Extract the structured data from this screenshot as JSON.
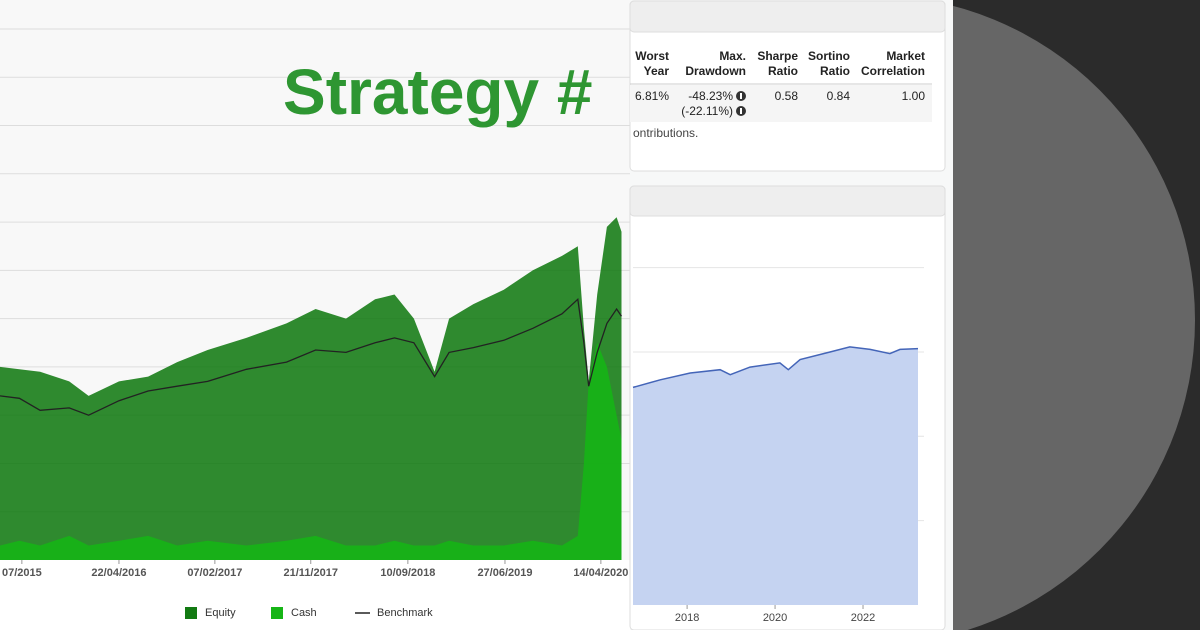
{
  "header": {
    "title": "Strategy #"
  },
  "chart_data": [
    {
      "type": "area",
      "x": [
        2015.33,
        2015.49,
        2015.66,
        2015.9,
        2016.06,
        2016.31,
        2016.55,
        2016.79,
        2017.04,
        2017.36,
        2017.69,
        2017.93,
        2018.18,
        2018.42,
        2018.58,
        2018.74,
        2018.91,
        2019.03,
        2019.23,
        2019.48,
        2019.72,
        2019.96,
        2020.09,
        2020.14,
        2020.18,
        2020.25,
        2020.33,
        2020.41,
        2020.45
      ],
      "series": [
        {
          "name": "Equity",
          "color": "#127a12",
          "values": [
            4.0,
            3.95,
            3.9,
            3.7,
            3.4,
            3.7,
            3.8,
            4.1,
            4.35,
            4.6,
            4.9,
            5.2,
            5.0,
            5.4,
            5.5,
            5.0,
            3.9,
            5.0,
            5.3,
            5.6,
            6.0,
            6.3,
            6.5,
            4.8,
            3.7,
            5.5,
            6.9,
            7.1,
            6.8
          ]
        },
        {
          "name": "Cash",
          "color": "#16b516",
          "values": [
            0.3,
            0.4,
            0.3,
            0.5,
            0.3,
            0.4,
            0.5,
            0.3,
            0.4,
            0.3,
            0.4,
            0.5,
            0.3,
            0.3,
            0.4,
            0.3,
            0.3,
            0.4,
            0.3,
            0.3,
            0.4,
            0.3,
            0.5,
            2.0,
            3.7,
            4.5,
            4.0,
            3.0,
            2.5
          ]
        },
        {
          "name": "Benchmark",
          "color": "#222222",
          "type": "line",
          "values": [
            3.4,
            3.35,
            3.1,
            3.15,
            3.0,
            3.3,
            3.5,
            3.6,
            3.7,
            3.95,
            4.1,
            4.35,
            4.3,
            4.5,
            4.6,
            4.5,
            3.8,
            4.3,
            4.4,
            4.55,
            4.8,
            5.1,
            5.4,
            4.5,
            3.6,
            4.3,
            4.9,
            5.2,
            5.05
          ]
        }
      ],
      "xlim": [
        2015.33,
        2020.52
      ],
      "xticks": [
        {
          "value": 2015.51,
          "label": "07/2015"
        },
        {
          "value": 2016.31,
          "label": "22/04/2016"
        },
        {
          "value": 2017.1,
          "label": "07/02/2017"
        },
        {
          "value": 2017.89,
          "label": "21/11/2017"
        },
        {
          "value": 2018.69,
          "label": "10/09/2018"
        },
        {
          "value": 2019.49,
          "label": "27/06/2019"
        },
        {
          "value": 2020.28,
          "label": "14/04/2020"
        }
      ],
      "ylim": [
        0,
        11.6
      ],
      "yticks": [
        1,
        2,
        3,
        4,
        5,
        6,
        7,
        8,
        9,
        10,
        11
      ],
      "grid": true,
      "legend": "bottom"
    },
    {
      "type": "area",
      "x": [
        2016.77,
        2017.39,
        2018.07,
        2018.75,
        2018.98,
        2019.43,
        2020.11,
        2020.3,
        2020.57,
        2021.25,
        2021.7,
        2022.16,
        2022.61,
        2022.84,
        2023.25
      ],
      "values": [
        2.58,
        2.67,
        2.75,
        2.79,
        2.73,
        2.82,
        2.87,
        2.79,
        2.91,
        3.0,
        3.06,
        3.03,
        2.98,
        3.03,
        3.04
      ],
      "color": "#4465b8",
      "xlim": [
        2016.77,
        2023.25
      ],
      "xticks": [
        2018,
        2020,
        2022
      ],
      "ylim": [
        0,
        4.6
      ],
      "yticks": [
        1,
        2,
        3,
        4
      ],
      "grid": true
    }
  ],
  "table": {
    "headers": [
      "Worst Year",
      "Max. Drawdown",
      "Sharpe Ratio",
      "Sortino Ratio",
      "Market Correlation"
    ],
    "rows": [
      [
        "6.81%",
        "-48.23%",
        "0.58",
        "0.84",
        "1.00"
      ]
    ],
    "subrow": [
      "(-22.11%)"
    ]
  },
  "note": "ontributions."
}
